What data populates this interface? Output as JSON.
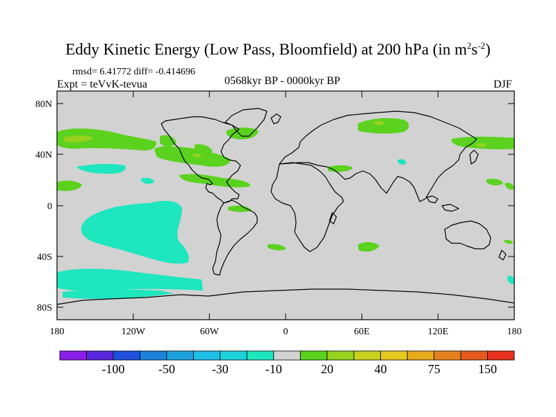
{
  "title": {
    "main": "Eddy Kinetic Energy (Low Pass, Bloomfield) at 200 hPa (in m",
    "sup1": "2",
    "mid": "s",
    "sup2": "-2",
    "close": ")"
  },
  "stats": "rmsd= 6.41772 diff= -0.414696",
  "expt": "Expt = teVvK-tevua",
  "period": "0568kyr BP - 0000kyr BP",
  "season": "DJF",
  "lat_labels": [
    "80N",
    "40N",
    "0",
    "40S",
    "80S"
  ],
  "lon_labels": [
    "180",
    "120W",
    "60W",
    "0",
    "60E",
    "120E",
    "180"
  ],
  "colorbar": {
    "colors": [
      "#8a1ee6",
      "#5a28dc",
      "#1e50dc",
      "#1c82dc",
      "#1ea0dc",
      "#1ebee6",
      "#1ed2dc",
      "#1ee6be",
      "#d2d2d2",
      "#5ad21e",
      "#96d21e",
      "#c8d21e",
      "#e6c81e",
      "#e6aa1e",
      "#e6821e",
      "#e65a1e",
      "#e6321e"
    ],
    "labels": [
      "-100",
      "-50",
      "-30",
      "-10",
      "20",
      "40",
      "75",
      "150"
    ]
  },
  "chart_data": {
    "type": "map",
    "projection": "cylindrical equidistant",
    "field": "Eddy kinetic energy difference",
    "units": "m2 s-2",
    "level_hPa": 200,
    "lon_range": [
      -180,
      180
    ],
    "lat_range": [
      -90,
      90
    ],
    "background_color": "#d2d2d2"
  }
}
